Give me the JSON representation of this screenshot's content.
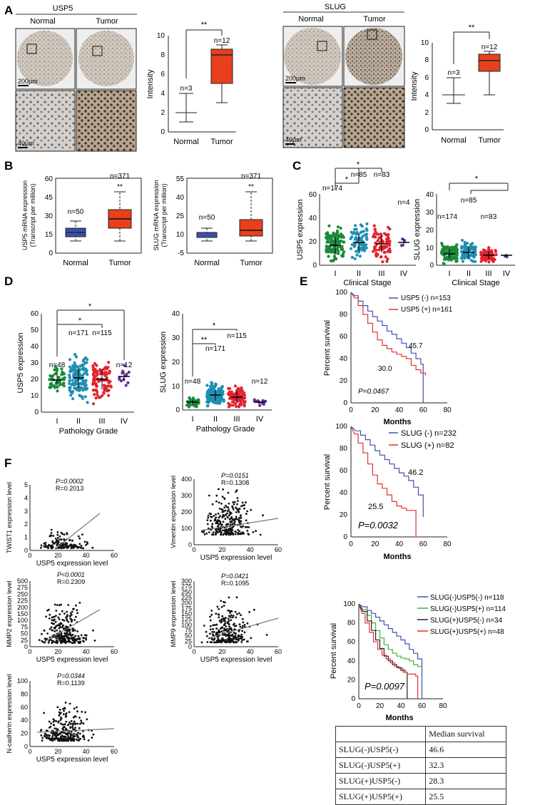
{
  "panels": {
    "A": "A",
    "B": "B",
    "C": "C",
    "D": "D",
    "E": "E",
    "F": "F"
  },
  "A": {
    "usp5_title": "USP5",
    "slug_title": "SLUG",
    "normal": "Normal",
    "tumor": "Tumor",
    "scale_200": "200μm",
    "scale_40": "40μm",
    "ylabel": "Intensity",
    "sig": "**",
    "n_normal": "n=3",
    "n_tumor": "n=12",
    "yticks": [
      "0",
      "2",
      "4",
      "6",
      "8",
      "10"
    ]
  },
  "B": {
    "usp5_ylabel": "USP5 mRNA expression",
    "slug_ylabel": "SLUG mRNA expression",
    "ylabel2": "(Transcript per million)",
    "n_normal": "n=50",
    "n_tumor": "n=371",
    "sig": "**",
    "normal": "Normal",
    "tumor": "Tumor",
    "usp5_yticks": [
      "60",
      "45",
      "30",
      "15",
      "0"
    ],
    "slug_yticks": [
      "55",
      "40",
      "25",
      "10",
      "-5"
    ]
  },
  "C": {
    "usp5_ylabel": "USP5 expression",
    "slug_ylabel": "SLUG expression",
    "xlabel": "Clinical Stage",
    "stages": [
      "I",
      "II",
      "III",
      "IV"
    ],
    "n": [
      "n=174",
      "n=85",
      "n=83",
      "n=4"
    ],
    "sig": "*",
    "usp5_yticks": [
      "60",
      "40",
      "20",
      "0"
    ],
    "slug_yticks": [
      "40",
      "30",
      "20",
      "10",
      "0"
    ]
  },
  "D": {
    "usp5_ylabel": "USP5 expression",
    "slug_ylabel": "SLUG expression",
    "xlabel": "Pathology Grade",
    "grades": [
      "I",
      "II",
      "III",
      "IV"
    ],
    "n": [
      "n=48",
      "n=171",
      "n=115",
      "n=12"
    ],
    "usp5_yticks": [
      "0",
      "10",
      "20",
      "30",
      "40",
      "50",
      "60"
    ],
    "slug_yticks": [
      "0",
      "10",
      "20",
      "30",
      "40"
    ]
  },
  "E": {
    "ylabel": "Percent survival",
    "xlabel": "Months",
    "xticks": [
      "0",
      "20",
      "40",
      "60",
      "80"
    ],
    "yticks": [
      "0",
      "20",
      "40",
      "60",
      "80",
      "100"
    ],
    "km1": {
      "legend": [
        "USP5 (-)  n=153",
        "USP5 (+)  n=161"
      ],
      "m1": "45.7",
      "m2": "30.0",
      "p": "P=0.0467"
    },
    "km2": {
      "legend": [
        "SLUG (-)  n=232",
        "SLUG (+)  n=82"
      ],
      "m1": "46.2",
      "m2": "25.5",
      "p": "P=0.0032"
    },
    "km3": {
      "legend": [
        "SLUG(-)USP5(-)  n=118",
        "SLUG(-)USP5(+)  n=114",
        "SLUG(+)USP5(-)  n=34",
        "SLUG(+)USP5(+)  n=48"
      ],
      "p": "P=0.0097"
    },
    "table": {
      "header": "Median survival",
      "rows": [
        [
          "SLUG(-)USP5(-)",
          "46.6"
        ],
        [
          "SLUG(-)USP5(+)",
          "32.3"
        ],
        [
          "SLUG(+)USP5(-)",
          "28.3"
        ],
        [
          "SLUG(+)USP5(+)",
          "25.5"
        ]
      ]
    }
  },
  "F": {
    "xlabel": "USP5 expression level",
    "plots": [
      {
        "ylabel": "TWIST1 expression level",
        "p": "P=0.0002",
        "r": "R=0.2013"
      },
      {
        "ylabel": "Vimentin expression level",
        "p": "P=0.0151",
        "r": "R=0.1308"
      },
      {
        "ylabel": "MMP2 expression level",
        "p": "P<0.0001",
        "r": "R=0.2309"
      },
      {
        "ylabel": "MMP9 expression level",
        "p": "P=0.0421",
        "r": "R=0.1095"
      },
      {
        "ylabel": "N-cadherin expression level",
        "p": "P=0.0344",
        "r": "R=0.1139"
      }
    ],
    "xticks": [
      "0",
      "20",
      "40",
      "60"
    ]
  },
  "colors": {
    "tumor_box": "#e8401c",
    "normal_box": "#3b4fa8",
    "g1": "#1a8a3a",
    "g2": "#1f8fb0",
    "g3": "#e0242e",
    "g4": "#6a2aa0",
    "km_blue": "#4050b0",
    "km_red": "#e03030",
    "km_green": "#40b040",
    "km_black": "#222222"
  }
}
